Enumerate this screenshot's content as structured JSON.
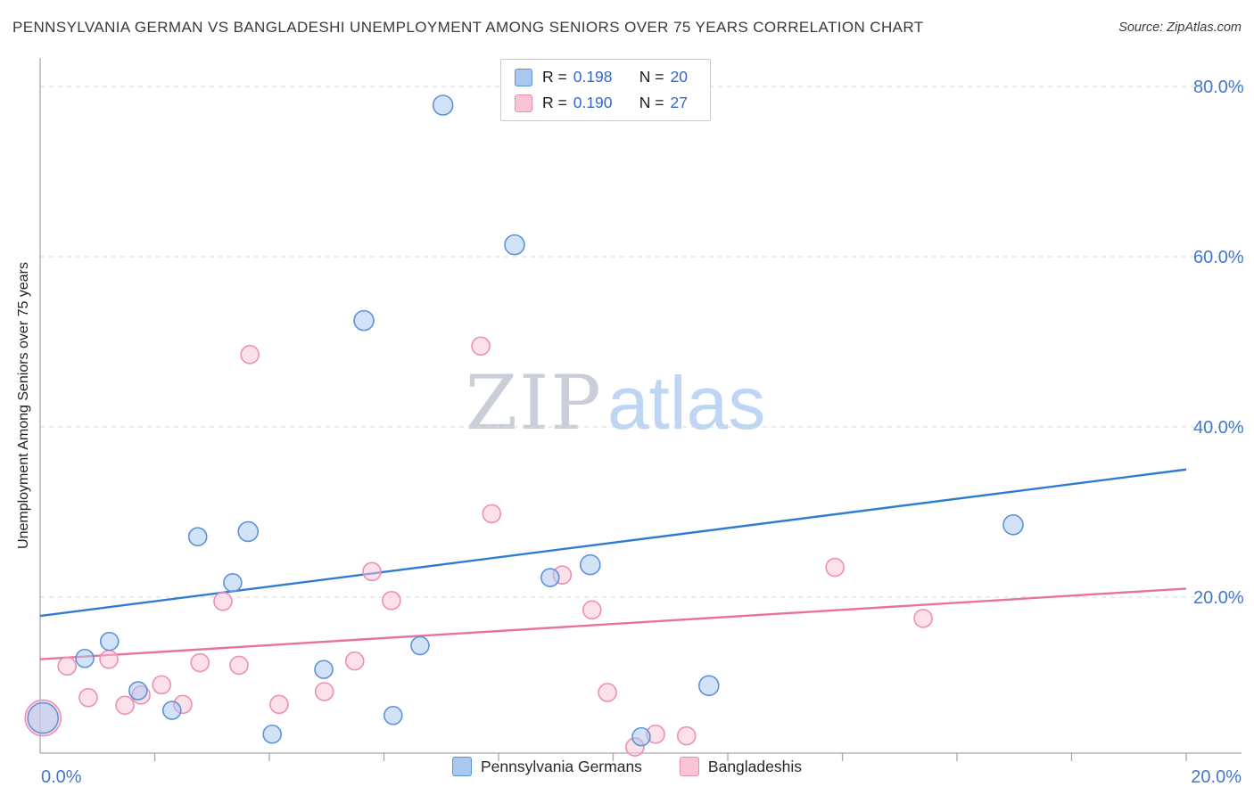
{
  "header": {
    "title": "PENNSYLVANIA GERMAN VS BANGLADESHI UNEMPLOYMENT AMONG SENIORS OVER 75 YEARS CORRELATION CHART",
    "source": "Source: ZipAtlas.com"
  },
  "watermark": {
    "part1": "ZIP",
    "part2": "atlas"
  },
  "legend_box": {
    "rows": [
      {
        "series": "Pennsylvania Germans",
        "r_label": "R =",
        "r_value": "0.198",
        "n_label": "N =",
        "n_value": "20"
      },
      {
        "series": "Bangladeshis",
        "r_label": "R =",
        "r_value": "0.190",
        "n_label": "N =",
        "n_value": "27"
      }
    ],
    "value_color": "#3566cd"
  },
  "bottom_legend": {
    "items": [
      {
        "label": "Pennsylvania Germans"
      },
      {
        "label": "Bangladeshis"
      }
    ]
  },
  "axes": {
    "y_label": "Unemployment Among Seniors over 75 years",
    "y_ticks": [
      {
        "value": 80,
        "label": "80.0%"
      },
      {
        "value": 60,
        "label": "60.0%"
      },
      {
        "value": 40,
        "label": "40.0%"
      },
      {
        "value": 20,
        "label": "20.0%"
      }
    ],
    "x_ticks": [
      {
        "value": 0,
        "label": "0.0%"
      },
      {
        "value": 20,
        "label": "20.0%"
      }
    ],
    "x_minor_ticks": [
      2,
      4,
      6,
      8,
      10,
      12,
      14,
      16,
      18,
      20
    ],
    "tick_label_color": "#4478CE",
    "grid_color": "#d9d9d9",
    "axis_color": "#a6a6a6"
  },
  "chart_data": {
    "type": "scatter",
    "title": "Pennsylvania German vs Bangladeshi Unemployment Among Seniors over 75 years",
    "xlabel": "",
    "ylabel": "Unemployment Among Seniors over 75 years",
    "x_unit": "%",
    "y_unit": "%",
    "xlim": [
      0,
      20
    ],
    "ylim": [
      0,
      84
    ],
    "grid": "horizontal-dashed",
    "legend_position": "top-center and bottom-center",
    "point_columns": [
      "x_pct",
      "y_pct",
      "radius_px"
    ],
    "series": [
      {
        "id": "pennsylvania-germans",
        "name": "Pennsylvania Germans",
        "R": 0.198,
        "N": 20,
        "fill": "#A8C8F0",
        "stroke": "#5E92D8",
        "points": [
          [
            0.05,
            5.8,
            17
          ],
          [
            0.78,
            12.8,
            10
          ],
          [
            1.21,
            14.8,
            10
          ],
          [
            1.71,
            9.0,
            10
          ],
          [
            2.3,
            6.7,
            10
          ],
          [
            2.75,
            27.1,
            10
          ],
          [
            3.36,
            21.7,
            10
          ],
          [
            3.63,
            27.7,
            11
          ],
          [
            4.05,
            3.9,
            10
          ],
          [
            4.95,
            11.5,
            10
          ],
          [
            5.65,
            52.5,
            11
          ],
          [
            6.16,
            6.1,
            10
          ],
          [
            6.63,
            14.3,
            10
          ],
          [
            7.03,
            77.8,
            11
          ],
          [
            8.28,
            61.4,
            11
          ],
          [
            8.9,
            22.3,
            10
          ],
          [
            9.6,
            23.8,
            11
          ],
          [
            10.49,
            3.6,
            10
          ],
          [
            11.67,
            9.6,
            11
          ],
          [
            16.98,
            28.5,
            11
          ]
        ]
      },
      {
        "id": "bangladeshis",
        "name": "Bangladeshis",
        "R": 0.19,
        "N": 27,
        "fill": "#F9C4D8",
        "stroke": "#EE8FB4",
        "points": [
          [
            0.05,
            5.8,
            20
          ],
          [
            0.47,
            11.9,
            10
          ],
          [
            0.84,
            8.2,
            10
          ],
          [
            1.2,
            12.7,
            10
          ],
          [
            1.48,
            7.3,
            10
          ],
          [
            1.76,
            8.5,
            10
          ],
          [
            2.12,
            9.7,
            10
          ],
          [
            2.49,
            7.4,
            10
          ],
          [
            2.79,
            12.3,
            10
          ],
          [
            3.19,
            19.5,
            10
          ],
          [
            3.47,
            12.0,
            10
          ],
          [
            3.66,
            48.5,
            10
          ],
          [
            4.17,
            7.4,
            10
          ],
          [
            4.96,
            8.9,
            10
          ],
          [
            5.49,
            12.5,
            10
          ],
          [
            5.79,
            23.0,
            10
          ],
          [
            6.13,
            19.6,
            10
          ],
          [
            7.69,
            49.5,
            10
          ],
          [
            7.88,
            29.8,
            10
          ],
          [
            9.11,
            22.6,
            10
          ],
          [
            9.63,
            18.5,
            10
          ],
          [
            9.9,
            8.8,
            10
          ],
          [
            10.38,
            2.4,
            10
          ],
          [
            10.74,
            3.9,
            10
          ],
          [
            11.28,
            3.7,
            10
          ],
          [
            13.87,
            23.5,
            10
          ],
          [
            15.41,
            17.5,
            10
          ]
        ]
      }
    ],
    "trend_lines": [
      {
        "name": "trend-line-pennsylvania-germans",
        "series": "Pennsylvania Germans",
        "color": "#2E7BD4",
        "x1": 0,
        "y1": 17.8,
        "x2": 20,
        "y2": 35.0
      },
      {
        "name": "trend-line-bangladeshis",
        "series": "Bangladeshis",
        "color": "#E9719F",
        "x1": 0,
        "y1": 12.7,
        "x2": 20,
        "y2": 21.0
      }
    ]
  }
}
